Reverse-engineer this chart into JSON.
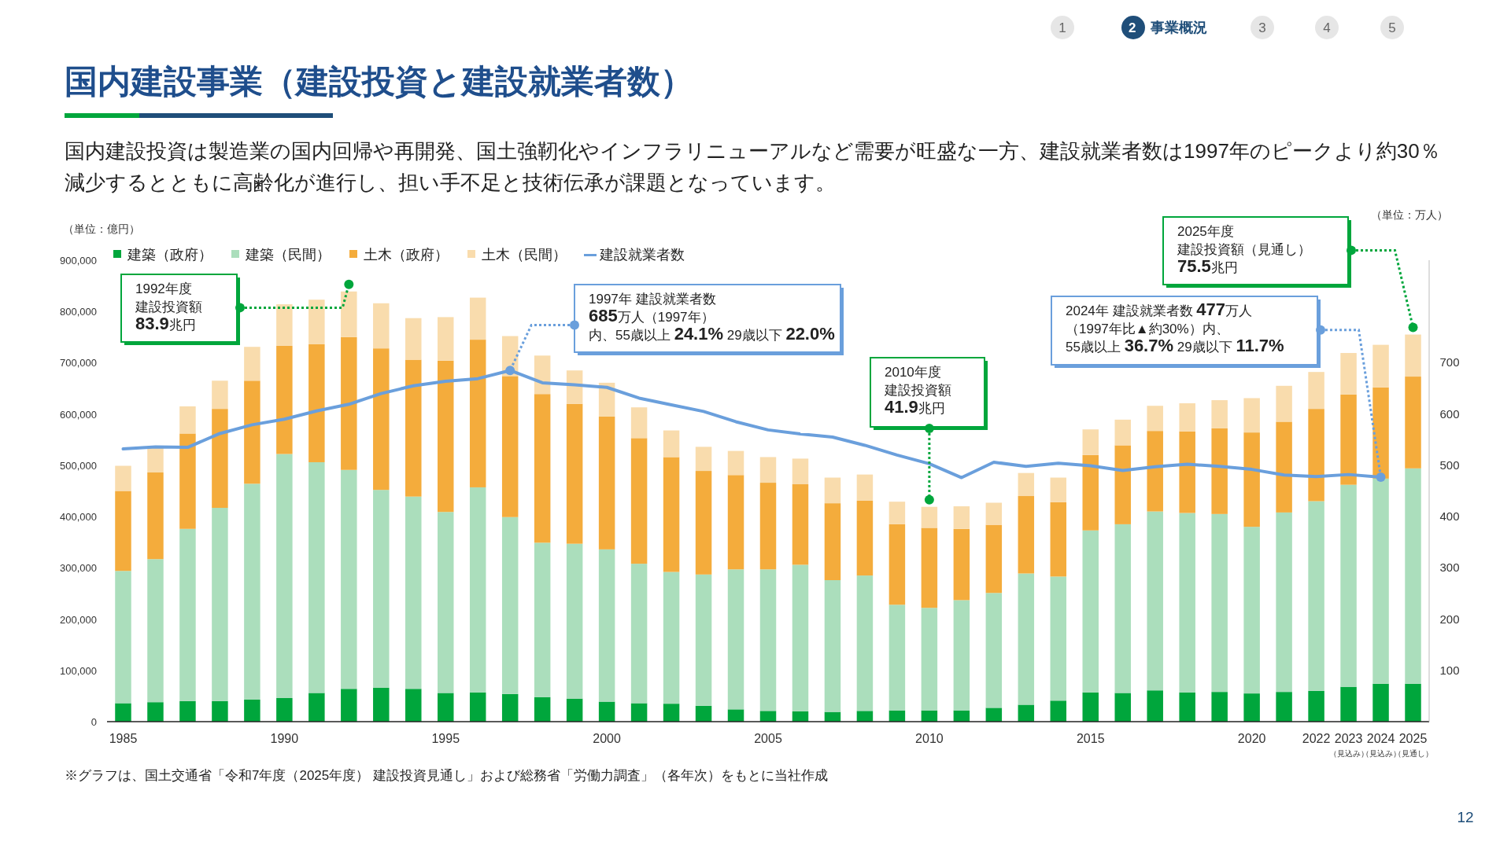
{
  "chart_data": {
    "type": "bar",
    "stacked": true,
    "title": "国内建設事業（建設投資と建設就業者数）",
    "subtitle": "国内建設投資は製造業の国内回帰や再開発、国土強靭化やインフラリニューアルなど需要が旺盛な一方、建設就業者数は1997年のピークより約30％減少するとともに高齢化が進行し、担い手不足と技術伝承が課題となっています。",
    "ylabel": "（単位：億円）",
    "y2label": "（単位：万人）",
    "legend": "top left",
    "categories": [
      "1985",
      null,
      null,
      null,
      null,
      "1990",
      null,
      null,
      null,
      null,
      "1995",
      null,
      null,
      null,
      null,
      "2000",
      null,
      null,
      null,
      null,
      "2005",
      null,
      null,
      null,
      null,
      "2010",
      null,
      null,
      null,
      null,
      "2015",
      null,
      null,
      null,
      null,
      "2020",
      null,
      "2022",
      "2023\n（見込み）",
      "2024\n（見込み）",
      "2025\n（見通し）"
    ],
    "ylim": [
      0,
      900000
    ],
    "yticks": [
      0,
      {
        "value": 100000,
        "label": "100,000"
      },
      {
        "value": 200000,
        "label": "200,000"
      },
      {
        "value": 300000,
        "label": "300,000"
      },
      {
        "value": 400000,
        "label": "400,000"
      },
      {
        "value": 500000,
        "label": "500,000"
      },
      {
        "value": 600000,
        "label": "600,000"
      },
      {
        "value": 700000,
        "label": "700,000"
      },
      {
        "value": 800000,
        "label": "800,000"
      },
      {
        "value": 900000,
        "label": "900,000"
      }
    ],
    "y2lim": [
      0,
      900
    ],
    "y2ticks": [
      100,
      200,
      300,
      400,
      500,
      600,
      700
    ],
    "series": [
      {
        "name": "建築（政府）",
        "color": "#00a63c",
        "values": [
          36000,
          38000,
          40000,
          40000,
          43000,
          46000,
          56000,
          64000,
          66000,
          64000,
          56000,
          57000,
          54000,
          48000,
          45000,
          39000,
          36000,
          35000,
          31000,
          24000,
          21000,
          20000,
          19000,
          21000,
          22000,
          22000,
          22000,
          27000,
          33000,
          41000,
          57000,
          56000,
          61000,
          57000,
          58000,
          55000,
          58000,
          60000,
          68000,
          74000,
          74000
        ]
      },
      {
        "name": "建築（民間）",
        "color": "#abdebc",
        "values": [
          258000,
          279000,
          336000,
          377000,
          421000,
          476000,
          450000,
          427000,
          386000,
          375000,
          353000,
          400000,
          345000,
          301000,
          302000,
          297000,
          272000,
          257000,
          256000,
          273000,
          276000,
          286000,
          257000,
          264000,
          206000,
          200000,
          215000,
          224000,
          256000,
          242000,
          316000,
          329000,
          349000,
          350000,
          347000,
          325000,
          350000,
          370000,
          394000,
          400000,
          420000
        ]
      },
      {
        "name": "土木（政府）",
        "color": "#f4ac3c",
        "values": [
          156000,
          169000,
          186000,
          193000,
          201000,
          211000,
          230000,
          259000,
          276000,
          267000,
          295000,
          288000,
          275000,
          290000,
          273000,
          259000,
          245000,
          224000,
          202000,
          184000,
          169000,
          157000,
          150000,
          146000,
          157000,
          156000,
          139000,
          133000,
          151000,
          145000,
          147000,
          154000,
          157000,
          159000,
          167000,
          184000,
          177000,
          180000,
          176000,
          178000,
          179000
        ]
      },
      {
        "name": "土木（民間）",
        "color": "#f9dcad",
        "values": [
          49000,
          50000,
          53000,
          55000,
          66000,
          81000,
          87000,
          89000,
          88000,
          81000,
          85000,
          82000,
          78000,
          75000,
          65000,
          66000,
          60000,
          52000,
          47000,
          47000,
          50000,
          50000,
          50000,
          51000,
          44000,
          41000,
          44000,
          43000,
          45000,
          48000,
          50000,
          50000,
          49000,
          55000,
          55000,
          67000,
          70000,
          72000,
          81000,
          83000,
          82000
        ]
      },
      {
        "name": "建設就業者数",
        "type": "line",
        "axis": "y2",
        "color": "#6a9fdc",
        "values": [
          532,
          536,
          535,
          562,
          579,
          590,
          606,
          619,
          640,
          655,
          664,
          669,
          685,
          661,
          657,
          652,
          631,
          618,
          605,
          585,
          569,
          561,
          555,
          539,
          520,
          503,
          476,
          506,
          498,
          504,
          499,
          490,
          497,
          502,
          498,
          492,
          481,
          478,
          482,
          477,
          null
        ]
      }
    ],
    "annotations": [
      "1992年度",
      "建設投資額",
      "**83.9**兆円",
      "1997年 建設就業者数",
      "**685**万人（1997年）",
      "内、55歳以上 **24.1%** 29歳以下 **22.0%**",
      "2010年度",
      "建設投資額",
      "**41.9**兆円",
      "2024年 建設就業者数 **477**万人",
      "（1997年比▲約30%）内、",
      "55歳以上 **36.7%** 29歳以下 **11.7%**",
      "2025年度",
      "建設投資額（見通し）",
      "**75.5**兆円",
      "※グラフは、国土交通省「令和7年度（2025年度） 建設投資見通し」および総務省「労働力調査」（各年次）をもとに当社作成",
      "1",
      "2 事業概況",
      "3",
      "4",
      "5",
      "12"
    ]
  }
}
